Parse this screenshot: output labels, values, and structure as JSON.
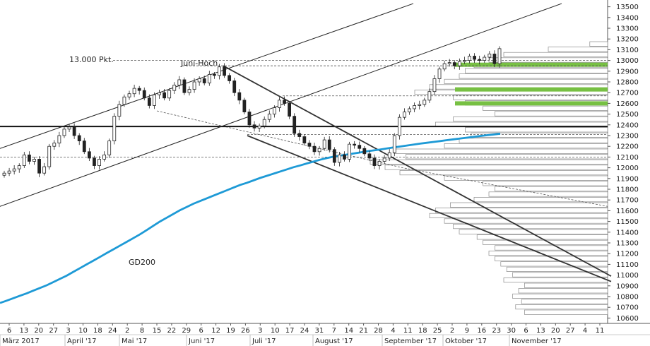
{
  "chart_data": {
    "type": "candlestick",
    "yaxis": {
      "ylim": [
        10550,
        13550
      ],
      "ticks": [
        13500,
        13400,
        13300,
        13200,
        13100,
        13000,
        12900,
        12800,
        12700,
        12600,
        12500,
        12400,
        12300,
        12200,
        12100,
        12000,
        11900,
        11800,
        11700,
        11600,
        11500,
        11400,
        11300,
        11200,
        11100,
        11000,
        10900,
        10800,
        10700,
        10600
      ]
    },
    "xaxis": {
      "day_labels": [
        "6",
        "13",
        "20",
        "27",
        "3",
        "10",
        "18",
        "24",
        "2",
        "8",
        "15",
        "22",
        "29",
        "6",
        "12",
        "19",
        "26",
        "3",
        "10",
        "17",
        "24",
        "31",
        "7",
        "14",
        "21",
        "28",
        "4",
        "11",
        "18",
        "25",
        "2",
        "9",
        "16",
        "23",
        "30",
        "6",
        "13",
        "20",
        "27",
        "4",
        "11"
      ],
      "month_labels": [
        "März 2017",
        "April '17",
        "Mai '17",
        "Juni '17",
        "Juli '17",
        "August '17",
        "September '17",
        "Oktober '17",
        "November '17"
      ]
    },
    "annotations": {
      "level_13000": "13.000 Pkt.",
      "june_high": "Juni-Hoch",
      "ma": "GD200"
    },
    "series": {
      "close": [
        11950,
        11970,
        11990,
        12020,
        12120,
        12060,
        12080,
        11950,
        12010,
        12200,
        12230,
        12300,
        12360,
        12380,
        12300,
        12250,
        12150,
        12090,
        12020,
        12080,
        12120,
        12250,
        12480,
        12590,
        12660,
        12690,
        12740,
        12720,
        12650,
        12580,
        12680,
        12700,
        12650,
        12720,
        12770,
        12820,
        12700,
        12730,
        12800,
        12830,
        12790,
        12870,
        12860,
        12940,
        12860,
        12810,
        12700,
        12630,
        12520,
        12400,
        12370,
        12390,
        12450,
        12500,
        12560,
        12630,
        12600,
        12480,
        12320,
        12290,
        12230,
        12200,
        12150,
        12180,
        12260,
        12170,
        12050,
        12120,
        12080,
        12220,
        12210,
        12180,
        12130,
        12090,
        12020,
        12060,
        12090,
        12140,
        12300,
        12470,
        12520,
        12550,
        12580,
        12590,
        12630,
        12710,
        12830,
        12920,
        12970,
        12980,
        12950,
        12990,
        13000,
        13040,
        13010,
        13000,
        13030,
        13060,
        12970,
        13110
      ],
      "ma200": [
        10740,
        10762,
        10785,
        10808,
        10830,
        10855,
        10880,
        10905,
        10935,
        10965,
        10995,
        11030,
        11065,
        11100,
        11135,
        11170,
        11205,
        11240,
        11275,
        11310,
        11345,
        11380,
        11420,
        11460,
        11500,
        11535,
        11570,
        11605,
        11635,
        11665,
        11690,
        11715,
        11740,
        11765,
        11790,
        11815,
        11840,
        11860,
        11882,
        11905,
        11925,
        11945,
        11965,
        11985,
        12005,
        12022,
        12040,
        12057,
        12075,
        12090,
        12103,
        12113,
        12123,
        12133,
        12143,
        12153,
        12162,
        12170,
        12180,
        12190,
        12198,
        12207,
        12216,
        12225,
        12233,
        12241,
        12249,
        12257,
        12265,
        12273,
        12280,
        12288,
        12296,
        12303,
        12310,
        12318
      ],
      "volume_profile": {
        "levels": [
          10650,
          10700,
          10750,
          10800,
          10850,
          10900,
          10950,
          11000,
          11050,
          11100,
          11150,
          11200,
          11250,
          11300,
          11350,
          11400,
          11450,
          11500,
          11550,
          11600,
          11650,
          11700,
          11750,
          11800,
          11850,
          11900,
          11950,
          12000,
          12050,
          12100,
          12150,
          12200,
          12250,
          12300,
          12350,
          12400,
          12450,
          12500,
          12550,
          12600,
          12650,
          12700,
          12750,
          12800,
          12850,
          12900,
          12950,
          13000,
          13050,
          13100,
          13150
        ],
        "values": [
          0.28,
          0.31,
          0.29,
          0.32,
          0.3,
          0.28,
          0.35,
          0.32,
          0.34,
          0.36,
          0.38,
          0.4,
          0.38,
          0.42,
          0.44,
          0.5,
          0.52,
          0.55,
          0.6,
          0.58,
          0.53,
          0.45,
          0.4,
          0.38,
          0.42,
          0.55,
          0.7,
          0.75,
          0.8,
          0.68,
          0.72,
          0.55,
          0.5,
          0.46,
          0.48,
          0.58,
          0.52,
          0.38,
          0.42,
          0.48,
          0.52,
          0.65,
          0.6,
          0.55,
          0.5,
          0.48,
          0.45,
          0.4,
          0.35,
          0.2,
          0.06
        ]
      },
      "highlight_zones": [
        12600,
        12730,
        12960
      ]
    }
  }
}
